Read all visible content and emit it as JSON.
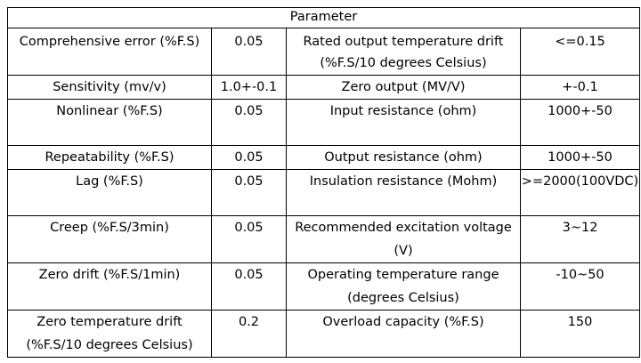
{
  "table": {
    "header": "Parameter",
    "rows": [
      {
        "param1": "Comprehensive error (%F.S)",
        "value1": "0.05",
        "param2": "Rated output temperature drift (%F.S/10 degrees Celsius)",
        "value2": "<=0.15"
      },
      {
        "param1": "Sensitivity (mv/v)",
        "value1": "1.0+-0.1",
        "param2": "Zero output (MV/V)",
        "value2": "+-0.1"
      },
      {
        "param1": "Nonlinear (%F.S)",
        "value1": "0.05",
        "param2": "Input resistance (ohm)",
        "value2": "1000+-50"
      },
      {
        "param1": "Repeatability (%F.S)",
        "value1": "0.05",
        "param2": "Output resistance (ohm)",
        "value2": "1000+-50"
      },
      {
        "param1": "Lag (%F.S)",
        "value1": "0.05",
        "param2": "Insulation resistance (Mohm)",
        "value2": ">=2000(100VDC)"
      },
      {
        "param1": "Creep (%F.S/3min)",
        "value1": "0.05",
        "param2": "Recommended excitation voltage (V)",
        "value2": "3~12"
      },
      {
        "param1": "Zero drift (%F.S/1min)",
        "value1": "0.05",
        "param2": "Operating temperature range (degrees Celsius)",
        "value2": "-10~50"
      },
      {
        "param1": "Zero temperature drift (%F.S/10 degrees Celsius)",
        "value1": "0.2",
        "param2": "Overload capacity (%F.S)",
        "value2": "150"
      }
    ]
  }
}
